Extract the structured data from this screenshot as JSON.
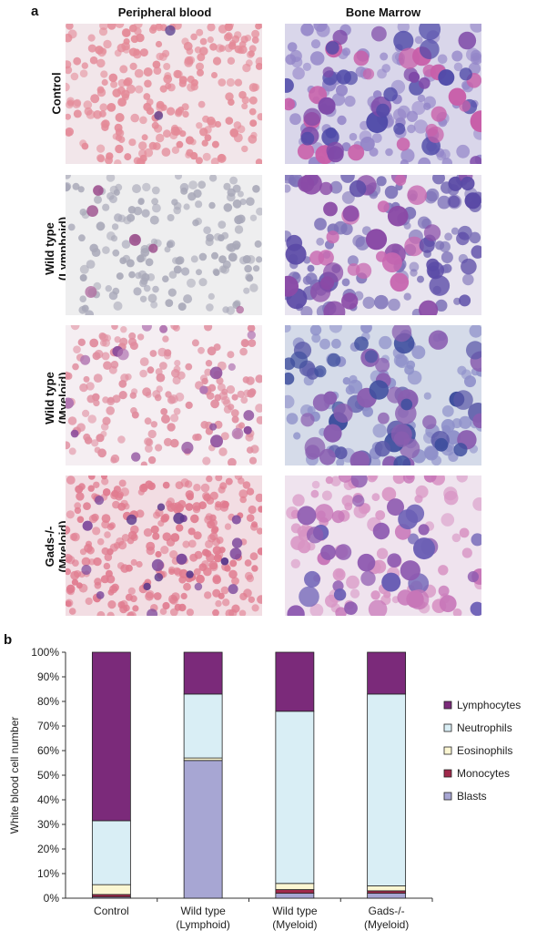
{
  "panel_a": {
    "letter": "a",
    "columns": [
      "Peripheral blood",
      "Bone Marrow"
    ],
    "rows": [
      "Control",
      "Wild type\n(Lymphoid)",
      "Wild type\n(Myeloid)",
      "Gads-/-\n(Myeloid)"
    ]
  },
  "panel_b": {
    "letter": "b"
  },
  "colors": {
    "lymphocytes": "#7b2a7a",
    "neutrophils": "#d9eef5",
    "eosinophils": "#fbf6d2",
    "monocytes": "#a0294b",
    "blasts": "#a7a6d3"
  },
  "chart_data": {
    "type": "bar",
    "stacked": true,
    "ylabel": "White blood cell number",
    "xlabel": "",
    "ylim": [
      0,
      100
    ],
    "yticks": [
      "0%",
      "10%",
      "20%",
      "30%",
      "40%",
      "50%",
      "60%",
      "70%",
      "80%",
      "90%",
      "100%"
    ],
    "categories": [
      "Control",
      "Wild type\n(Lymphoid)",
      "Wild type\n(Myeloid)",
      "Gads-/-\n(Myeloid)"
    ],
    "series": [
      {
        "name": "Blasts",
        "color_key": "blasts",
        "values": [
          0.5,
          56,
          2,
          2
        ]
      },
      {
        "name": "Monocytes",
        "color_key": "monocytes",
        "values": [
          1,
          0,
          1.5,
          1
        ]
      },
      {
        "name": "Eosinophils",
        "color_key": "eosinophils",
        "values": [
          4,
          1,
          2.5,
          2
        ]
      },
      {
        "name": "Neutrophils",
        "color_key": "neutrophils",
        "values": [
          26,
          26,
          70,
          78
        ]
      },
      {
        "name": "Lymphocytes",
        "color_key": "lymphocytes",
        "values": [
          68.5,
          17,
          24,
          17
        ]
      }
    ],
    "legend_order": [
      "Lymphocytes",
      "Neutrophils",
      "Eosinophils",
      "Monocytes",
      "Blasts"
    ],
    "legend_position": "right"
  }
}
